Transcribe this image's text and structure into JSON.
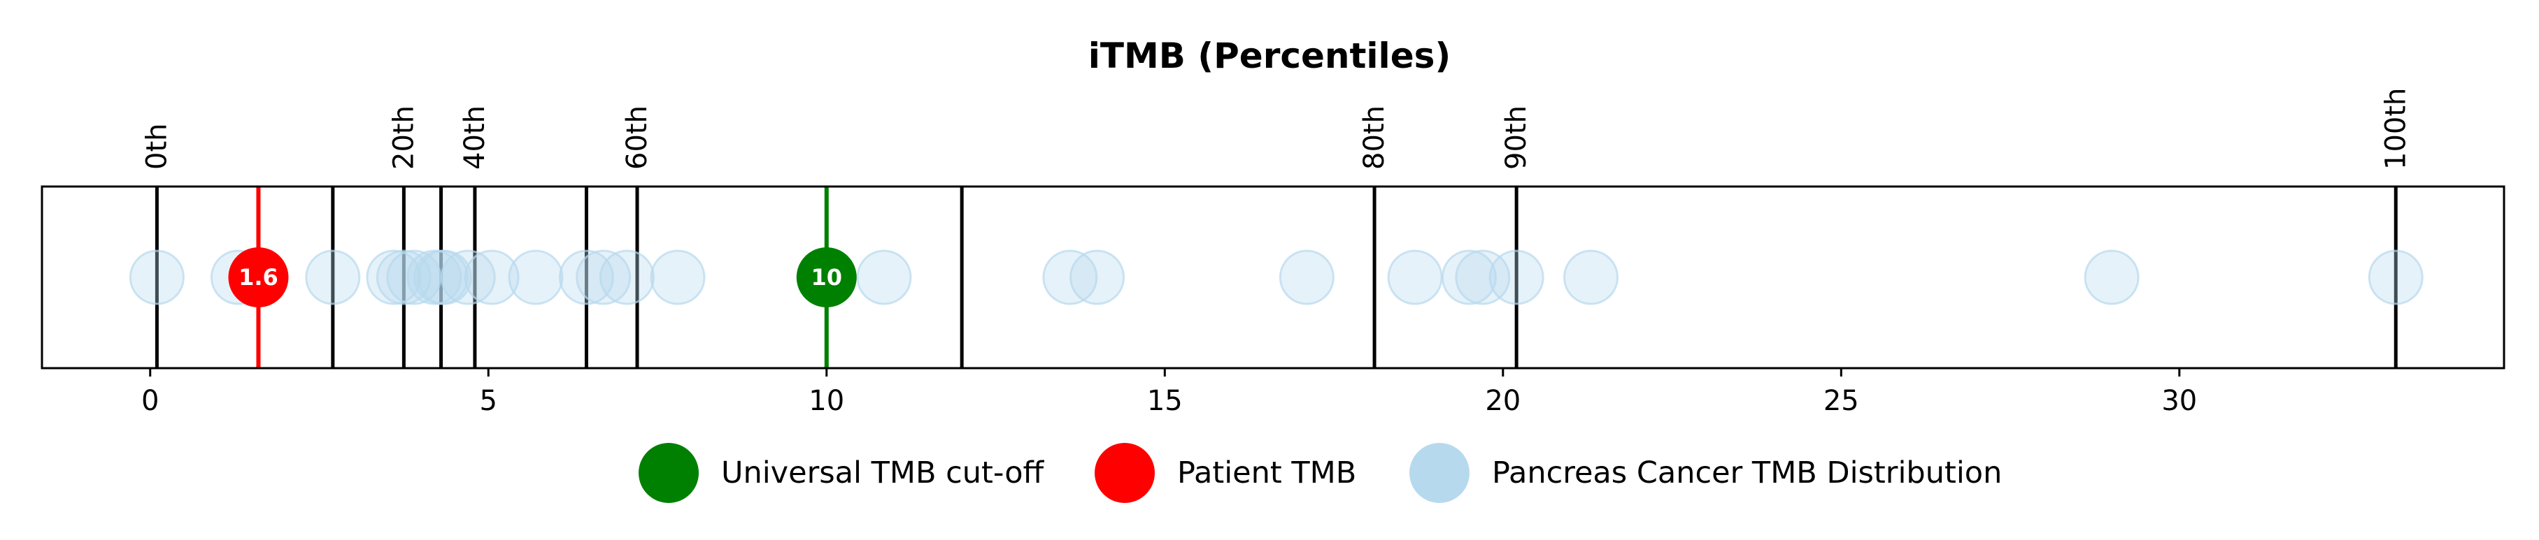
{
  "chart_data": {
    "type": "scatter",
    "title": "iTMB (Percentiles)",
    "xlabel": "",
    "ylabel": "",
    "xlim": [
      -1.6,
      34.8
    ],
    "x_ticks": [
      {
        "value": 0,
        "label": "0"
      },
      {
        "value": 5,
        "label": "5"
      },
      {
        "value": 10,
        "label": "10"
      },
      {
        "value": 15,
        "label": "15"
      },
      {
        "value": 20,
        "label": "20"
      },
      {
        "value": 25,
        "label": "25"
      },
      {
        "value": 30,
        "label": "30"
      }
    ],
    "grid": false,
    "percentile_lines": [
      {
        "value": 0.1,
        "label": "0th"
      },
      {
        "value": 2.7,
        "label": ""
      },
      {
        "value": 3.75,
        "label": "20th"
      },
      {
        "value": 4.3,
        "label": ""
      },
      {
        "value": 4.8,
        "label": "40th"
      },
      {
        "value": 6.45,
        "label": ""
      },
      {
        "value": 7.2,
        "label": "60th"
      },
      {
        "value": 12.0,
        "label": ""
      },
      {
        "value": 18.1,
        "label": "80th"
      },
      {
        "value": 20.2,
        "label": "90th"
      },
      {
        "value": 33.2,
        "label": "100th"
      }
    ],
    "series": [
      {
        "name": "Pancreas Cancer TMB Distribution",
        "color": "#b6d9ee",
        "x": [
          0.1,
          1.3,
          1.6,
          2.7,
          3.6,
          3.75,
          3.9,
          4.2,
          4.3,
          4.35,
          4.7,
          5.05,
          5.7,
          6.45,
          6.7,
          7.05,
          7.8,
          10.85,
          13.6,
          14.0,
          17.1,
          18.7,
          19.5,
          19.7,
          20.2,
          21.3,
          29.0,
          33.2
        ]
      },
      {
        "name": "Universal TMB cut-off",
        "color": "#008000",
        "x": [
          10
        ],
        "marker_label": "10"
      },
      {
        "name": "Patient TMB",
        "color": "#ff0000",
        "x": [
          1.6
        ],
        "marker_label": "1.6"
      }
    ],
    "legend": {
      "position": "bottom-center",
      "entries": [
        {
          "label": "Universal TMB cut-off",
          "color": "#008000"
        },
        {
          "label": "Patient TMB",
          "color": "#ff0000"
        },
        {
          "label": "Pancreas Cancer TMB Distribution",
          "color": "#b6d9ee"
        }
      ]
    }
  }
}
